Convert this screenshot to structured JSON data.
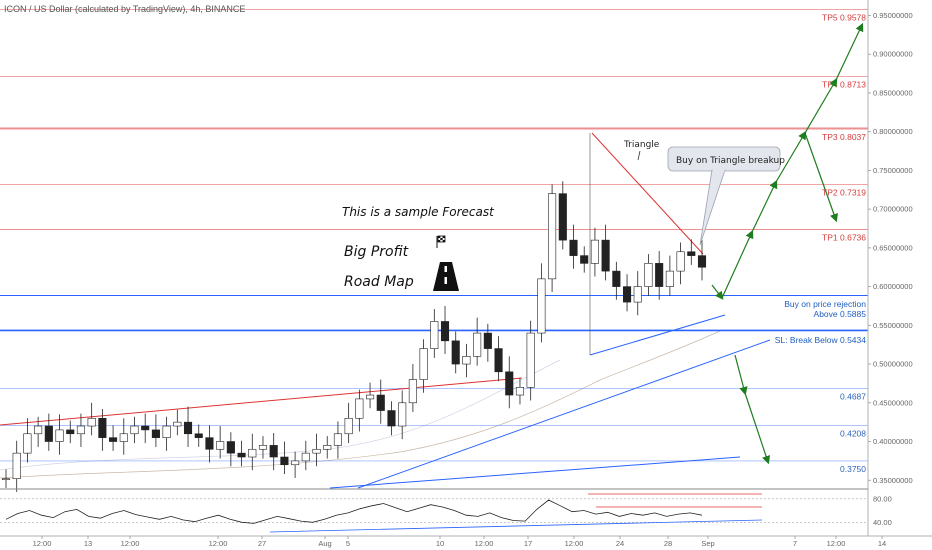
{
  "header": {
    "title": "ICON / US Dollar (calculated by TradingView), 4h, BINANCE"
  },
  "annotations": {
    "forecast": "This is a sample Forecast",
    "big_profit": "Big Profit",
    "road_map": "Road Map",
    "triangle": "Triangle",
    "callout": "Buy on Triangle breakup",
    "buy_line1": "Buy on price rejection",
    "buy_line2": "Above 0.5885",
    "sl": "SL: Break Below 0.5434"
  },
  "colors": {
    "tp": "#e04848",
    "support": "#2962ff",
    "arrow": "#1e7d1e",
    "candle": "#222222",
    "rsi_limit": "#e53935"
  },
  "chart_data": {
    "type": "line",
    "title": "ICON / US Dollar (calculated by TradingView), 4h, BINANCE",
    "ylim": [
      0.34,
      0.97
    ],
    "y_ticks": [
      "0.95000000",
      "0.90000000",
      "0.85000000",
      "0.80000000",
      "0.75000000",
      "0.70000000",
      "0.65000000",
      "0.60000000",
      "0.55000000",
      "0.50000000",
      "0.45000000",
      "0.40000000",
      "0.35000000"
    ],
    "x_ticks": [
      "12:00",
      "13",
      "12:00",
      "12:00",
      "27",
      "Aug",
      "5",
      "10",
      "12:00",
      "17",
      "12:00",
      "24",
      "28",
      "Sep",
      "7",
      "12:00",
      "14"
    ],
    "levels": [
      {
        "label": "TP5 0.9578",
        "value": 0.9578,
        "kind": "tp"
      },
      {
        "label": "TP4 0.8713",
        "value": 0.8713,
        "kind": "tp"
      },
      {
        "label": "TP3 0.8037",
        "value": 0.8037,
        "kind": "tp"
      },
      {
        "label": "TP2 0.7319",
        "value": 0.7319,
        "kind": "tp"
      },
      {
        "label": "TP1 0.6736",
        "value": 0.6736,
        "kind": "tp"
      },
      {
        "label": "",
        "value": 0.5885,
        "kind": "entry"
      },
      {
        "label": "",
        "value": 0.5434,
        "kind": "sl"
      },
      {
        "label": "0.4687",
        "value": 0.4687,
        "kind": "support"
      },
      {
        "label": "0.4208",
        "value": 0.4208,
        "kind": "support"
      },
      {
        "label": "0.3750",
        "value": 0.375,
        "kind": "support"
      }
    ],
    "price_close": [
      0.352,
      0.385,
      0.41,
      0.42,
      0.4,
      0.415,
      0.41,
      0.42,
      0.43,
      0.405,
      0.4,
      0.41,
      0.42,
      0.415,
      0.405,
      0.42,
      0.425,
      0.41,
      0.405,
      0.39,
      0.4,
      0.385,
      0.38,
      0.39,
      0.395,
      0.38,
      0.37,
      0.375,
      0.385,
      0.39,
      0.395,
      0.41,
      0.43,
      0.455,
      0.46,
      0.44,
      0.42,
      0.45,
      0.48,
      0.52,
      0.555,
      0.53,
      0.5,
      0.51,
      0.54,
      0.52,
      0.49,
      0.46,
      0.47,
      0.54,
      0.61,
      0.72,
      0.66,
      0.64,
      0.63,
      0.66,
      0.62,
      0.6,
      0.58,
      0.6,
      0.63,
      0.6,
      0.62,
      0.645,
      0.64,
      0.625
    ],
    "rsi": {
      "levels": [
        80,
        40
      ],
      "tick_labels": [
        "80.00",
        "40.00"
      ],
      "values": [
        45,
        55,
        60,
        52,
        48,
        58,
        62,
        50,
        47,
        55,
        60,
        53,
        49,
        45,
        50,
        44,
        41,
        47,
        52,
        45,
        40,
        38,
        44,
        50,
        46,
        42,
        40,
        45,
        52,
        56,
        63,
        68,
        72,
        65,
        58,
        64,
        70,
        66,
        60,
        52,
        50,
        56,
        48,
        43,
        42,
        62,
        78,
        68,
        58,
        60,
        54,
        57,
        50,
        55,
        52,
        56,
        50,
        54,
        56,
        52
      ]
    }
  }
}
